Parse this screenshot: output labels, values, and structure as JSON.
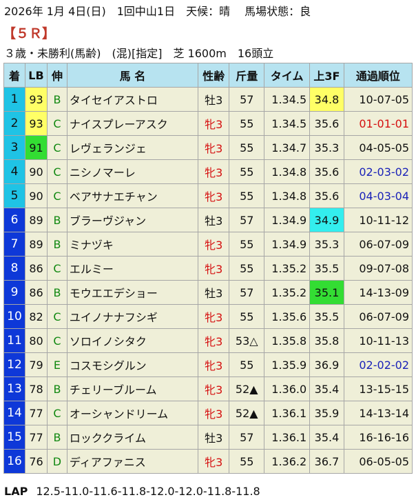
{
  "race": {
    "date_weather": "2026年 1月 4日(日)　1回中山1日　天候：晴　 馬場状態：良",
    "race_no": "【５Ｒ】",
    "conditions": "３歳・未勝利(馬齢)　(混)[指定]　芝 1600m　16頭立"
  },
  "columns": [
    "着",
    "LB",
    "伸",
    "馬 名",
    "性齢",
    "斤量",
    "タイム",
    "上3F",
    "通過順位"
  ],
  "rows": [
    {
      "pos": "1",
      "lb": "93",
      "nobi": "B",
      "name": "タイセイアストロ",
      "sexage": "牡3",
      "weight": "57",
      "time": "1.34.5",
      "f3": "34.8",
      "passing": "10-07-05",
      "lb_hl": "y",
      "f3_hl": "y",
      "sex": "m",
      "pass_color": ""
    },
    {
      "pos": "2",
      "lb": "93",
      "nobi": "C",
      "name": "ナイスプレーアスク",
      "sexage": "牝3",
      "weight": "55",
      "time": "1.34.5",
      "f3": "35.6",
      "passing": "01-01-01",
      "lb_hl": "y",
      "f3_hl": "",
      "sex": "f",
      "pass_color": "red"
    },
    {
      "pos": "3",
      "lb": "91",
      "nobi": "C",
      "name": "レヴェランジェ",
      "sexage": "牝3",
      "weight": "55",
      "time": "1.34.7",
      "f3": "35.3",
      "passing": "04-05-05",
      "lb_hl": "g",
      "f3_hl": "",
      "sex": "f",
      "pass_color": ""
    },
    {
      "pos": "4",
      "lb": "90",
      "nobi": "C",
      "name": "ニシノマーレ",
      "sexage": "牝3",
      "weight": "55",
      "time": "1.34.8",
      "f3": "35.6",
      "passing": "02-03-02",
      "lb_hl": "",
      "f3_hl": "",
      "sex": "f",
      "pass_color": "blue"
    },
    {
      "pos": "5",
      "lb": "90",
      "nobi": "C",
      "name": "ベアサナエチャン",
      "sexage": "牝3",
      "weight": "55",
      "time": "1.34.8",
      "f3": "35.6",
      "passing": "04-03-04",
      "lb_hl": "",
      "f3_hl": "",
      "sex": "f",
      "pass_color": "blue"
    },
    {
      "pos": "6",
      "lb": "89",
      "nobi": "B",
      "name": "ブラーヴジャン",
      "sexage": "牡3",
      "weight": "57",
      "time": "1.34.9",
      "f3": "34.9",
      "passing": "10-11-12",
      "lb_hl": "",
      "f3_hl": "c",
      "sex": "m",
      "pass_color": ""
    },
    {
      "pos": "7",
      "lb": "89",
      "nobi": "B",
      "name": "ミナヅキ",
      "sexage": "牝3",
      "weight": "55",
      "time": "1.34.9",
      "f3": "35.3",
      "passing": "06-07-09",
      "lb_hl": "",
      "f3_hl": "",
      "sex": "f",
      "pass_color": ""
    },
    {
      "pos": "8",
      "lb": "86",
      "nobi": "C",
      "name": "エルミー",
      "sexage": "牝3",
      "weight": "55",
      "time": "1.35.2",
      "f3": "35.5",
      "passing": "09-07-08",
      "lb_hl": "",
      "f3_hl": "",
      "sex": "f",
      "pass_color": ""
    },
    {
      "pos": "9",
      "lb": "86",
      "nobi": "B",
      "name": "モウエエデショー",
      "sexage": "牡3",
      "weight": "57",
      "time": "1.35.2",
      "f3": "35.1",
      "passing": "14-13-09",
      "lb_hl": "",
      "f3_hl": "g",
      "sex": "m",
      "pass_color": ""
    },
    {
      "pos": "10",
      "lb": "82",
      "nobi": "C",
      "name": "ユイノナナフシギ",
      "sexage": "牝3",
      "weight": "55",
      "time": "1.35.6",
      "f3": "35.5",
      "passing": "06-07-09",
      "lb_hl": "",
      "f3_hl": "",
      "sex": "f",
      "pass_color": ""
    },
    {
      "pos": "11",
      "lb": "80",
      "nobi": "C",
      "name": "ソロイノシタク",
      "sexage": "牝3",
      "weight": "53△",
      "time": "1.35.8",
      "f3": "35.8",
      "passing": "10-11-13",
      "lb_hl": "",
      "f3_hl": "",
      "sex": "f",
      "pass_color": ""
    },
    {
      "pos": "12",
      "lb": "79",
      "nobi": "E",
      "name": "コスモシグルン",
      "sexage": "牝3",
      "weight": "55",
      "time": "1.35.9",
      "f3": "36.9",
      "passing": "02-02-02",
      "lb_hl": "",
      "f3_hl": "",
      "sex": "f",
      "pass_color": "blue"
    },
    {
      "pos": "13",
      "lb": "78",
      "nobi": "B",
      "name": "チェリーブルーム",
      "sexage": "牝3",
      "weight": "52▲",
      "time": "1.36.0",
      "f3": "35.4",
      "passing": "13-15-15",
      "lb_hl": "",
      "f3_hl": "",
      "sex": "f",
      "pass_color": ""
    },
    {
      "pos": "14",
      "lb": "77",
      "nobi": "C",
      "name": "オーシャンドリーム",
      "sexage": "牝3",
      "weight": "52▲",
      "time": "1.36.1",
      "f3": "35.9",
      "passing": "14-13-14",
      "lb_hl": "",
      "f3_hl": "",
      "sex": "f",
      "pass_color": ""
    },
    {
      "pos": "15",
      "lb": "77",
      "nobi": "B",
      "name": "ロッククライム",
      "sexage": "牡3",
      "weight": "57",
      "time": "1.36.1",
      "f3": "35.4",
      "passing": "16-16-16",
      "lb_hl": "",
      "f3_hl": "",
      "sex": "m",
      "pass_color": ""
    },
    {
      "pos": "16",
      "lb": "76",
      "nobi": "D",
      "name": "ディアファニス",
      "sexage": "牝3",
      "weight": "55",
      "time": "1.36.2",
      "f3": "36.7",
      "passing": "06-05-05",
      "lb_hl": "",
      "f3_hl": "",
      "sex": "f",
      "pass_color": ""
    }
  ],
  "lap": {
    "label": "LAP",
    "values": "12.5-11.0-11.6-11.8-12.0-12.0-11.8-11.8"
  },
  "colors": {
    "header_bg": "#b7e3f0",
    "row_bg": "#efefd8",
    "position_bg": "#0e38d8",
    "top_position_bg": "#1fc3e5",
    "highlight_yellow": "#ffff66",
    "highlight_green": "#33dd33",
    "highlight_cyan": "#33eeee",
    "female_red": "#d51010"
  }
}
